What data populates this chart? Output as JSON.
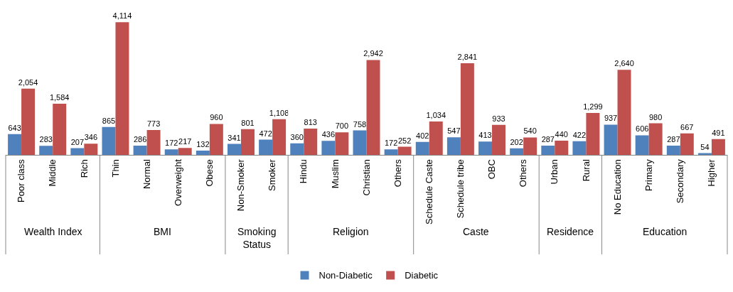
{
  "chart_data": [
    {
      "type": "bar",
      "xlabel": "Wealth Index",
      "categories": [
        "Poor class",
        "Middle",
        "Rich"
      ],
      "legend": "bottom",
      "series": [
        {
          "name": "Non-Diabetic",
          "color": "#4f81bd",
          "values": [
            643,
            283,
            207
          ],
          "value_labels": [
            "643",
            "283",
            "207"
          ]
        },
        {
          "name": "Diabetic",
          "color": "#c0504d",
          "values": [
            2054,
            1584,
            346
          ],
          "value_labels": [
            "2,054",
            "1,584",
            "346"
          ]
        }
      ]
    },
    {
      "type": "bar",
      "xlabel": "BMI",
      "categories": [
        "Thin",
        "Normal",
        "Overweight",
        "Obese"
      ],
      "series": [
        {
          "name": "Non-Diabetic",
          "color": "#4f81bd",
          "values": [
            865,
            286,
            172,
            132
          ],
          "value_labels": [
            "865",
            "286",
            "172",
            "132"
          ]
        },
        {
          "name": "Diabetic",
          "color": "#c0504d",
          "values": [
            4114,
            773,
            217,
            960
          ],
          "value_labels": [
            "4,114",
            "773",
            "217",
            "960"
          ]
        }
      ]
    },
    {
      "type": "bar",
      "xlabel": "Smoking Status",
      "categories": [
        "Non-Smoker",
        "Smoker"
      ],
      "series": [
        {
          "name": "Non-Diabetic",
          "color": "#4f81bd",
          "values": [
            341,
            472
          ],
          "value_labels": [
            "341",
            "472"
          ]
        },
        {
          "name": "Diabetic",
          "color": "#c0504d",
          "values": [
            801,
            1108
          ],
          "value_labels": [
            "801",
            "1,108"
          ]
        }
      ]
    },
    {
      "type": "bar",
      "xlabel": "Religion",
      "categories": [
        "Hindu",
        "Muslim",
        "Christian",
        "Others"
      ],
      "series": [
        {
          "name": "Non-Diabetic",
          "color": "#4f81bd",
          "values": [
            360,
            436,
            758,
            172
          ],
          "value_labels": [
            "360",
            "436",
            "758",
            "172"
          ]
        },
        {
          "name": "Diabetic",
          "color": "#c0504d",
          "values": [
            813,
            700,
            2942,
            252
          ],
          "value_labels": [
            "813",
            "700",
            "2,942",
            "252"
          ]
        }
      ]
    },
    {
      "type": "bar",
      "xlabel": "Caste",
      "categories": [
        "Schedule Caste",
        "Schedule tribe",
        "OBC",
        "Others"
      ],
      "series": [
        {
          "name": "Non-Diabetic",
          "color": "#4f81bd",
          "values": [
            402,
            547,
            413,
            202
          ],
          "value_labels": [
            "402",
            "547",
            "413",
            "202"
          ]
        },
        {
          "name": "Diabetic",
          "color": "#c0504d",
          "values": [
            1034,
            2841,
            933,
            540
          ],
          "value_labels": [
            "1,034",
            "2,841",
            "933",
            "540"
          ]
        }
      ]
    },
    {
      "type": "bar",
      "xlabel": "Residence",
      "categories": [
        "Urban",
        "Rural"
      ],
      "series": [
        {
          "name": "Non-Diabetic",
          "color": "#4f81bd",
          "values": [
            287,
            422
          ],
          "value_labels": [
            "287",
            "422"
          ]
        },
        {
          "name": "Diabetic",
          "color": "#c0504d",
          "values": [
            440,
            1299
          ],
          "value_labels": [
            "440",
            "1,299"
          ]
        }
      ]
    },
    {
      "type": "bar",
      "xlabel": "Education",
      "categories": [
        "No Education",
        "Primary",
        "Secondary",
        "Higher"
      ],
      "series": [
        {
          "name": "Non-Diabetic",
          "color": "#4f81bd",
          "values": [
            937,
            606,
            287,
            54
          ],
          "value_labels": [
            "937",
            "606",
            "287",
            "54"
          ]
        },
        {
          "name": "Diabetic",
          "color": "#c0504d",
          "values": [
            2640,
            980,
            667,
            491
          ],
          "value_labels": [
            "2,640",
            "980",
            "667",
            "491"
          ]
        }
      ]
    }
  ]
}
